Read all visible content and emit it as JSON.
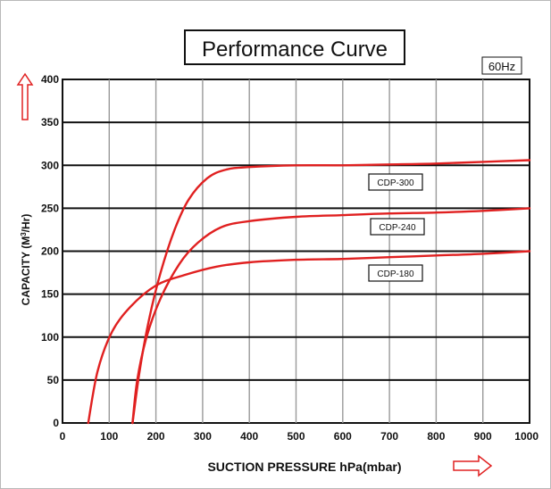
{
  "chart_data": {
    "type": "line",
    "title": "Performance Curve",
    "badge": "60Hz",
    "xlabel": "SUCTION PRESSURE hPa(mbar)",
    "ylabel_parts": [
      "CAPACITY (M",
      "3",
      "/Hr)"
    ],
    "xlim": [
      0,
      1000
    ],
    "ylim": [
      0,
      400
    ],
    "x_ticks": [
      0,
      100,
      200,
      300,
      400,
      500,
      600,
      700,
      800,
      900,
      1000
    ],
    "x_tick_labels": [
      "0",
      "100",
      "200",
      "300",
      "400",
      "500",
      "600",
      "700",
      "800",
      "900",
      "1000"
    ],
    "y_ticks": [
      0,
      50,
      100,
      150,
      200,
      250,
      300,
      350,
      400
    ],
    "y_tick_labels": [
      "0",
      "50",
      "100",
      "150",
      "200",
      "250",
      "300",
      "350",
      "400"
    ],
    "grid": true,
    "curve_color": "#e02020",
    "arrow_color": "#e02020",
    "series": [
      {
        "name": "CDP-300",
        "points": [
          [
            150,
            0
          ],
          [
            165,
            60
          ],
          [
            185,
            120
          ],
          [
            210,
            175
          ],
          [
            240,
            225
          ],
          [
            270,
            260
          ],
          [
            310,
            285
          ],
          [
            350,
            295
          ],
          [
            400,
            298
          ],
          [
            500,
            300
          ],
          [
            600,
            300
          ],
          [
            700,
            301
          ],
          [
            800,
            302
          ],
          [
            900,
            304
          ],
          [
            1000,
            306
          ]
        ]
      },
      {
        "name": "CDP-240",
        "points": [
          [
            150,
            0
          ],
          [
            160,
            50
          ],
          [
            180,
            100
          ],
          [
            210,
            145
          ],
          [
            250,
            185
          ],
          [
            290,
            210
          ],
          [
            340,
            228
          ],
          [
            400,
            235
          ],
          [
            500,
            240
          ],
          [
            600,
            242
          ],
          [
            700,
            244
          ],
          [
            800,
            245
          ],
          [
            900,
            247
          ],
          [
            1000,
            250
          ]
        ]
      },
      {
        "name": "CDP-180",
        "points": [
          [
            55,
            0
          ],
          [
            75,
            60
          ],
          [
            105,
            105
          ],
          [
            145,
            135
          ],
          [
            200,
            160
          ],
          [
            260,
            172
          ],
          [
            330,
            182
          ],
          [
            400,
            187
          ],
          [
            500,
            190
          ],
          [
            600,
            191
          ],
          [
            700,
            193
          ],
          [
            800,
            195
          ],
          [
            900,
            197
          ],
          [
            1000,
            200
          ]
        ]
      }
    ]
  }
}
